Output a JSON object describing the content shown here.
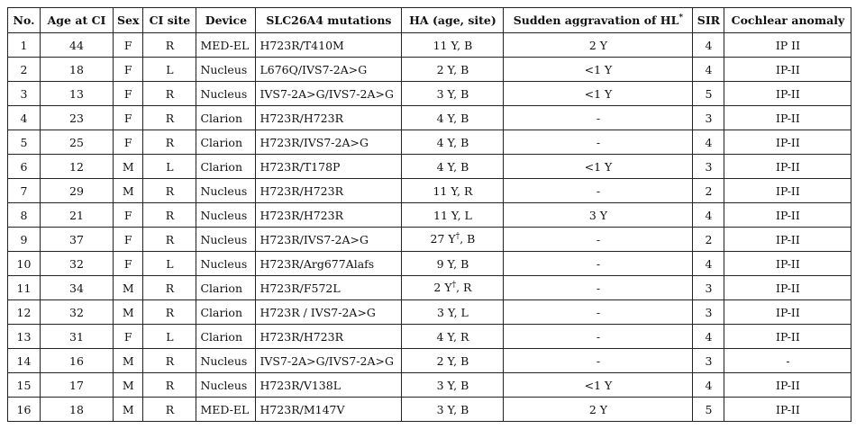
{
  "table": {
    "headers": [
      "No.",
      "Age at CI",
      "Sex",
      "CI site",
      "Device",
      "SLC26A4 mutations",
      "HA (age, site)",
      [
        {
          "text": "Sudden aggravation of HL"
        },
        {
          "sup": "*"
        }
      ],
      "SIR",
      "Cochlear anomaly"
    ],
    "rows": [
      [
        "1",
        "44",
        "F",
        "R",
        "MED-EL",
        "H723R/T410M",
        "11 Y, B",
        "2 Y",
        "4",
        "IP II"
      ],
      [
        "2",
        "18",
        "F",
        "L",
        "Nucleus",
        "L676Q/IVS7-2A>G",
        "2 Y, B",
        "<1 Y",
        "4",
        "IP-II"
      ],
      [
        "3",
        "13",
        "F",
        "R",
        "Nucleus",
        "IVS7-2A>G/IVS7-2A>G",
        "3 Y, B",
        "<1 Y",
        "5",
        "IP-II"
      ],
      [
        "4",
        "23",
        "F",
        "R",
        "Clarion",
        "H723R/H723R",
        "4 Y, B",
        "-",
        "3",
        "IP-II"
      ],
      [
        "5",
        "25",
        "F",
        "R",
        "Clarion",
        "H723R/IVS7-2A>G",
        "4 Y, B",
        "-",
        "4",
        "IP-II"
      ],
      [
        "6",
        "12",
        "M",
        "L",
        "Clarion",
        "H723R/T178P",
        "4 Y, B",
        "<1 Y",
        "3",
        "IP-II"
      ],
      [
        "7",
        "29",
        "M",
        "R",
        "Nucleus",
        "H723R/H723R",
        "11 Y, R",
        "-",
        "2",
        "IP-II"
      ],
      [
        "8",
        "21",
        "F",
        "R",
        "Nucleus",
        "H723R/H723R",
        "11 Y, L",
        "3 Y",
        "4",
        "IP-II"
      ],
      [
        "9",
        "37",
        "F",
        "R",
        "Nucleus",
        "H723R/IVS7-2A>G",
        [
          {
            "text": "27 Y"
          },
          {
            "sup": "†"
          },
          {
            "text": ", B"
          }
        ],
        "-",
        "2",
        "IP-II"
      ],
      [
        "10",
        "32",
        "F",
        "L",
        "Nucleus",
        "H723R/Arg677Alafs",
        "9 Y, B",
        "-",
        "4",
        "IP-II"
      ],
      [
        "11",
        "34",
        "M",
        "R",
        "Clarion",
        "H723R/F572L",
        [
          {
            "text": "2 Y"
          },
          {
            "sup": "†"
          },
          {
            "text": ", R"
          }
        ],
        "-",
        "3",
        "IP-II"
      ],
      [
        "12",
        "32",
        "M",
        "R",
        "Clarion",
        "H723R / IVS7-2A>G",
        "3 Y, L",
        "-",
        "3",
        "IP-II"
      ],
      [
        "13",
        "31",
        "F",
        "L",
        "Clarion",
        "H723R/H723R",
        "4 Y, R",
        "-",
        "4",
        "IP-II"
      ],
      [
        "14",
        "16",
        "M",
        "R",
        "Nucleus",
        "IVS7-2A>G/IVS7-2A>G",
        "2 Y, B",
        "-",
        "3",
        "-"
      ],
      [
        "15",
        "17",
        "M",
        "R",
        "Nucleus",
        "H723R/V138L",
        "3 Y, B",
        "<1 Y",
        "4",
        "IP-II"
      ],
      [
        "16",
        "18",
        "M",
        "R",
        "MED-EL",
        "H723R/M147V",
        "3 Y, B",
        "2 Y",
        "5",
        "IP-II"
      ]
    ]
  }
}
